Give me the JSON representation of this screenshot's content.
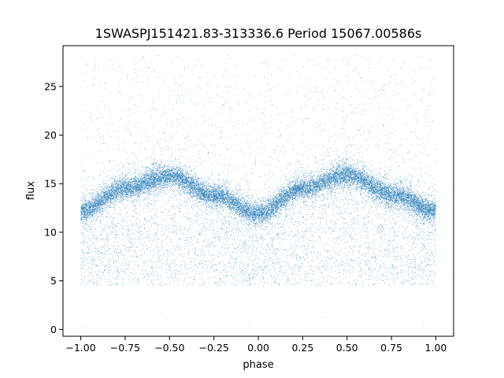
{
  "chart_data": {
    "type": "scatter",
    "title": "1SWASPJ151421.83-313336.6 Period 15067.00586s",
    "xlabel": "phase",
    "ylabel": "flux",
    "xlim": [
      -1.1,
      1.1
    ],
    "ylim": [
      -0.7,
      29.2
    ],
    "x_ticks": [
      -1.0,
      -0.75,
      -0.5,
      -0.25,
      0.0,
      0.25,
      0.5,
      0.75,
      1.0
    ],
    "x_tick_labels": [
      "−1.00",
      "−0.75",
      "−0.50",
      "−0.25",
      "0.00",
      "0.25",
      "0.50",
      "0.75",
      "1.00"
    ],
    "y_ticks": [
      0,
      5,
      10,
      15,
      20,
      25
    ],
    "y_tick_labels": [
      "0",
      "5",
      "10",
      "15",
      "20",
      "25"
    ],
    "grid": false,
    "legend": "none",
    "marker_color": "#1f77b4",
    "series": [
      {
        "phase_range": [
          -1.0,
          1.0
        ],
        "curve": {
          "phase": [
            -1.0,
            -0.75,
            -0.5,
            -0.25,
            0.0,
            0.25,
            0.5,
            0.75,
            1.0
          ],
          "flux": [
            12.2,
            14.5,
            15.8,
            13.8,
            11.9,
            14.5,
            15.9,
            13.9,
            12.2
          ]
        },
        "core_scatter_sigma": 0.6,
        "outlier_flux_range": [
          4.5,
          28.2
        ],
        "sparse_low_points": [
          {
            "x": -0.97,
            "y": 0.3
          },
          {
            "x": -0.05,
            "y": 0.7
          },
          {
            "x": 0.38,
            "y": 1.2
          },
          {
            "x": 0.93,
            "y": 0.8
          },
          {
            "x": -0.55,
            "y": 1.8
          }
        ]
      }
    ]
  }
}
